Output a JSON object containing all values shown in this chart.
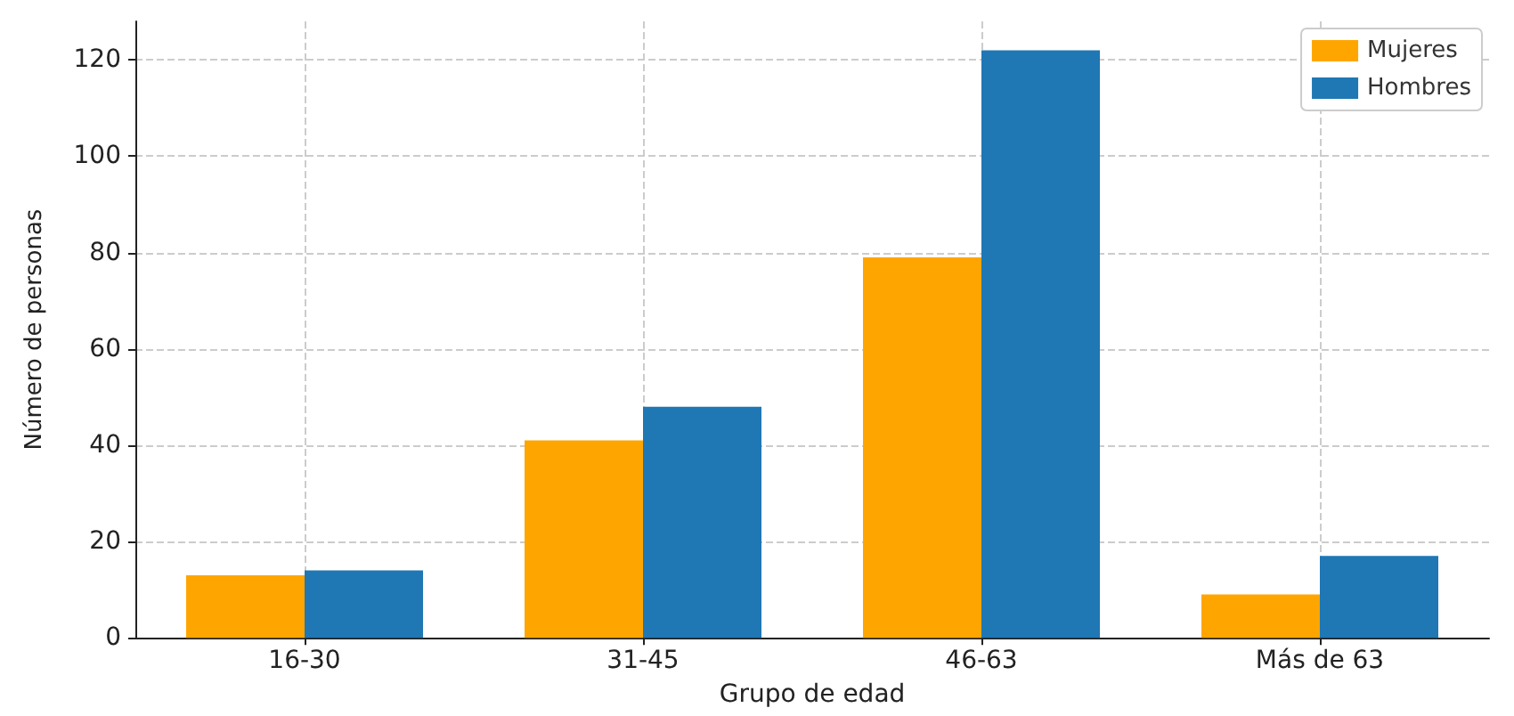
{
  "chart_data": {
    "type": "bar",
    "xlabel": "Grupo de edad",
    "ylabel": "Número de personas",
    "categories": [
      "16-30",
      "31-45",
      "46-63",
      "Más de 63"
    ],
    "series": [
      {
        "name": "Mujeres",
        "color": "#ffa500",
        "values": [
          13,
          41,
          79,
          9
        ]
      },
      {
        "name": "Hombres",
        "color": "#1f77b4",
        "values": [
          14,
          48,
          122,
          17
        ]
      }
    ],
    "ylim": [
      0,
      128
    ],
    "yticks": [
      0,
      20,
      40,
      60,
      80,
      100,
      120
    ],
    "grid": true,
    "legend": "top right"
  }
}
